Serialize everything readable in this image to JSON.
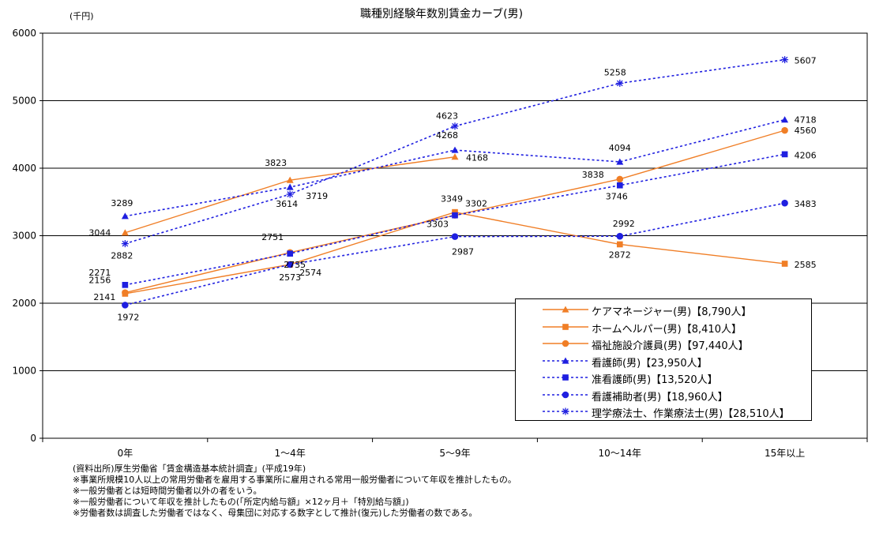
{
  "chart_data": {
    "type": "line",
    "title": "職種別経験年数別賃金カーブ(男)",
    "unit_label": "(千円)",
    "categories": [
      "0年",
      "1～4年",
      "5～9年",
      "10～14年",
      "15年以上"
    ],
    "ylim": [
      0,
      6000
    ],
    "yticks": [
      "0",
      "1000",
      "2000",
      "3000",
      "4000",
      "5000",
      "6000"
    ],
    "grid": true,
    "legend_position": "bottom-right",
    "series": [
      {
        "name": "ケアマネージャー(男)【8,790人】",
        "color": "#f07e26",
        "dash": false,
        "marker": "triangle",
        "values": [
          3044,
          3823,
          4168,
          null,
          null
        ],
        "labels": [
          "3044",
          "3823",
          "4168",
          "",
          ""
        ]
      },
      {
        "name": "ホームヘルパー(男)【8,410人】",
        "color": "#f07e26",
        "dash": false,
        "marker": "square",
        "values": [
          2141,
          2574,
          3349,
          2872,
          2585
        ],
        "labels": [
          "2141",
          "2574",
          "3349",
          "2872",
          "2585"
        ]
      },
      {
        "name": "福祉施設介護員(男)【97,440人】",
        "color": "#f07e26",
        "dash": false,
        "marker": "circle",
        "values": [
          2156,
          2751,
          3303,
          3838,
          4560
        ],
        "labels": [
          "2156",
          "2751",
          "3303",
          "3838",
          "4560"
        ]
      },
      {
        "name": "看護師(男)【23,950人】",
        "color": "#1f1fe0",
        "dash": true,
        "marker": "triangle",
        "values": [
          3289,
          3719,
          4268,
          4094,
          4718
        ],
        "labels": [
          "3289",
          "3719",
          "4268",
          "4094",
          "4718"
        ]
      },
      {
        "name": "准看護師(男)【13,520人】",
        "color": "#1f1fe0",
        "dash": true,
        "marker": "square",
        "values": [
          2271,
          2735,
          3302,
          3746,
          4206
        ],
        "labels": [
          "2271",
          "2735",
          "3302",
          "3746",
          "4206"
        ]
      },
      {
        "name": "看護補助者(男)【18,960人】",
        "color": "#1f1fe0",
        "dash": true,
        "marker": "circle",
        "values": [
          1972,
          2573,
          2987,
          2992,
          3483
        ],
        "labels": [
          "1972",
          "2573",
          "2987",
          "2992",
          "3483"
        ]
      },
      {
        "name": "理学療法士、作業療法士(男)【28,510人】",
        "color": "#1f1fe0",
        "dash": true,
        "marker": "star",
        "values": [
          2882,
          3614,
          4623,
          5258,
          5607
        ],
        "labels": [
          "2882",
          "3614",
          "4623",
          "5258",
          "5607"
        ]
      }
    ]
  },
  "notes": [
    "(資料出所)厚生労働省「賃金構造基本統計調査」(平成19年)",
    "※事業所規模10人以上の常用労働者を雇用する事業所に雇用される常用一般労働者について年収を推計したもの。",
    "※一般労働者とは短時間労働者以外の者をいう。",
    "※一般労働者について年収を推計したもの(「所定内給与額」×12ヶ月＋「特別給与額」)",
    "※労働者数は調査した労働者ではなく、母集団に対応する数字として推計(復元)した労働者の数である。"
  ]
}
